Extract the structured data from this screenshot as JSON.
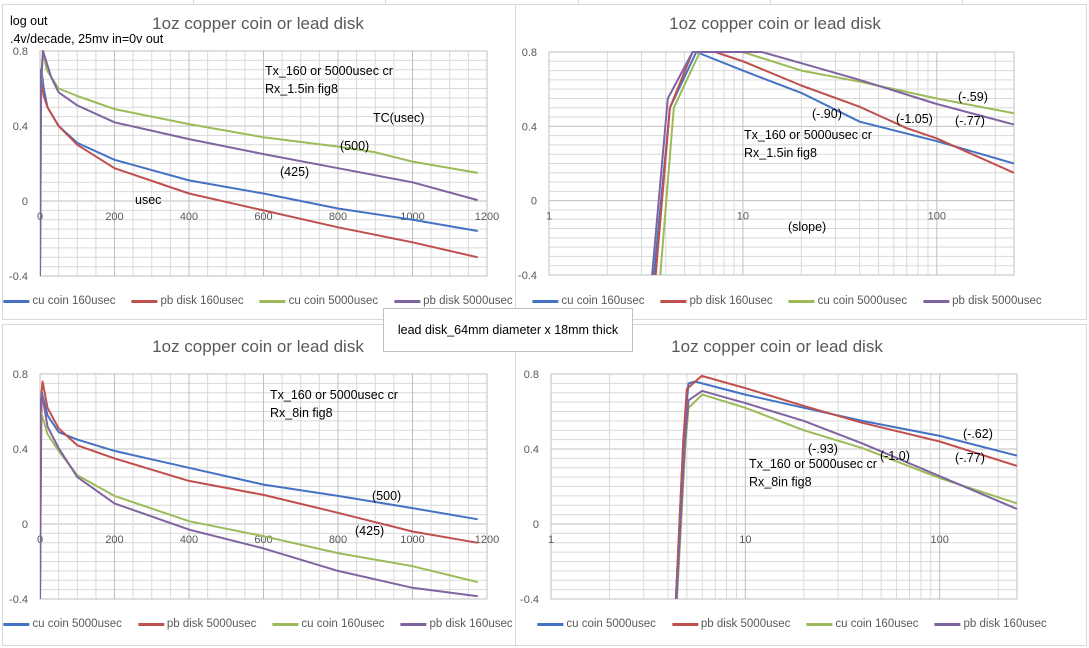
{
  "colors": {
    "blue": "#4472c4",
    "red": "#c0504d",
    "green": "#9bbb59",
    "purple": "#8064a2",
    "grid": "#d9d9d9",
    "axis_text": "#595959"
  },
  "textbox": "lead disk_64mm diameter x 18mm thick",
  "chart_data": [
    {
      "type": "line",
      "title": "1oz copper coin or lead disk",
      "annotations": [
        "log out",
        ".4v/decade, 25mv in=0v out",
        "Tx_160 or 5000usec cr",
        "Rx_1.5in fig8",
        "TC(usec)",
        "(500)",
        "(425)",
        "usec"
      ],
      "xscale": "linear",
      "xlim": [
        0,
        1200
      ],
      "ylim": [
        -0.4,
        0.8
      ],
      "xticks": [
        "0",
        "200",
        "400",
        "600",
        "800",
        "1000",
        "1200"
      ],
      "yticks": [
        "-0.4",
        "0",
        "0.4",
        "0.8"
      ],
      "grid": true,
      "legend": "bottom",
      "series": [
        {
          "name": "cu coin 160usec",
          "color": "#4472c4",
          "x": [
            0,
            2,
            5,
            10,
            20,
            50,
            100,
            200,
            400,
            600,
            800,
            1000,
            1175
          ],
          "y": [
            -0.4,
            0.7,
            0.68,
            0.6,
            0.5,
            0.4,
            0.31,
            0.22,
            0.11,
            0.04,
            -0.04,
            -0.1,
            -0.16
          ]
        },
        {
          "name": "pb disk 160usec",
          "color": "#c0504d",
          "x": [
            0,
            2,
            5,
            10,
            20,
            50,
            100,
            200,
            400,
            600,
            800,
            1000,
            1175
          ],
          "y": [
            -0.4,
            0.6,
            0.62,
            0.56,
            0.5,
            0.4,
            0.3,
            0.175,
            0.04,
            -0.05,
            -0.14,
            -0.22,
            -0.3
          ]
        },
        {
          "name": "cu coin 5000usec",
          "color": "#9bbb59",
          "x": [
            0,
            3,
            8,
            18,
            50,
            100,
            200,
            400,
            600,
            800,
            900,
            1000,
            1175
          ],
          "y": [
            -0.4,
            0.6,
            0.8,
            0.7,
            0.6,
            0.56,
            0.49,
            0.41,
            0.34,
            0.29,
            0.26,
            0.21,
            0.15
          ]
        },
        {
          "name": "pb disk 5000usec",
          "color": "#8064a2",
          "x": [
            0,
            3,
            8,
            30,
            50,
            100,
            200,
            400,
            600,
            800,
            1000,
            1175
          ],
          "y": [
            -0.4,
            0.65,
            0.8,
            0.66,
            0.58,
            0.51,
            0.42,
            0.33,
            0.25,
            0.175,
            0.1,
            0.005
          ]
        }
      ]
    },
    {
      "type": "line",
      "title": "1oz copper coin or lead disk",
      "annotations": [
        "(-.90)",
        "(-1.05)",
        "(-.59)",
        "(-.77)",
        "Tx_160 or 5000usec cr",
        "Rx_1.5in fig8",
        "(slope)"
      ],
      "xscale": "log",
      "xlim": [
        1,
        250
      ],
      "ylim": [
        -0.4,
        0.8
      ],
      "xticks": [
        "1",
        "10",
        "100"
      ],
      "yticks": [
        "-0.4",
        "0",
        "0.4",
        "0.8"
      ],
      "grid": true,
      "legend": "bottom",
      "series": [
        {
          "name": "cu coin 160usec",
          "color": "#4472c4",
          "x": [
            3.48,
            4.2,
            5.75,
            10,
            20,
            40,
            100,
            250
          ],
          "y": [
            -0.4,
            0.5,
            0.8,
            0.7,
            0.58,
            0.425,
            0.32,
            0.2
          ]
        },
        {
          "name": "pb disk 160usec",
          "color": "#c0504d",
          "x": [
            3.55,
            4.2,
            5.5,
            7.2,
            10,
            20,
            40,
            70,
            100,
            250
          ],
          "y": [
            -0.4,
            0.5,
            0.8,
            0.8,
            0.75,
            0.62,
            0.505,
            0.39,
            0.335,
            0.15
          ]
        },
        {
          "name": "cu coin 5000usec",
          "color": "#9bbb59",
          "x": [
            3.75,
            4.4,
            6,
            10,
            20,
            40,
            100,
            250
          ],
          "y": [
            -0.4,
            0.5,
            0.8,
            0.8,
            0.7,
            0.64,
            0.55,
            0.47
          ]
        },
        {
          "name": "pb disk 5000usec",
          "color": "#8064a2",
          "x": [
            3.4,
            4.1,
            5.5,
            12.5,
            20,
            40,
            100,
            250
          ],
          "y": [
            -0.4,
            0.55,
            0.8,
            0.8,
            0.74,
            0.65,
            0.52,
            0.41
          ]
        }
      ]
    },
    {
      "type": "line",
      "title": "1oz copper coin or lead disk",
      "annotations": [
        "Tx_160 or 5000usec cr",
        "Rx_8in fig8",
        "(500)",
        "(425)"
      ],
      "xscale": "linear",
      "xlim": [
        0,
        1200
      ],
      "ylim": [
        -0.4,
        0.8
      ],
      "xticks": [
        "0",
        "200",
        "400",
        "600",
        "800",
        "1000",
        "1200"
      ],
      "yticks": [
        "-0.4",
        "0",
        "0.4",
        "0.8"
      ],
      "grid": true,
      "legend": "bottom",
      "series": [
        {
          "name": "cu coin 5000usec",
          "color": "#4472c4",
          "x": [
            0,
            3,
            5,
            20,
            50,
            100,
            200,
            400,
            600,
            800,
            1000,
            1175
          ],
          "y": [
            -0.4,
            0.6,
            0.7,
            0.58,
            0.49,
            0.45,
            0.39,
            0.3,
            0.21,
            0.15,
            0.085,
            0.025
          ]
        },
        {
          "name": "pb disk 5000usec",
          "color": "#c0504d",
          "x": [
            0,
            4,
            7,
            20,
            50,
            100,
            200,
            400,
            600,
            800,
            1000,
            1175
          ],
          "y": [
            -0.4,
            0.7,
            0.76,
            0.62,
            0.51,
            0.42,
            0.35,
            0.23,
            0.155,
            0.06,
            -0.04,
            -0.1
          ]
        },
        {
          "name": "cu coin 160usec",
          "color": "#9bbb59",
          "x": [
            0,
            2,
            10,
            20,
            50,
            100,
            200,
            400,
            600,
            800,
            1000,
            1175
          ],
          "y": [
            -0.4,
            0.6,
            0.55,
            0.48,
            0.39,
            0.26,
            0.15,
            0.015,
            -0.065,
            -0.155,
            -0.225,
            -0.31
          ]
        },
        {
          "name": "pb disk  160usec",
          "color": "#8064a2",
          "x": [
            0,
            2,
            5,
            20,
            50,
            100,
            200,
            400,
            600,
            800,
            1000,
            1175
          ],
          "y": [
            -0.4,
            0.65,
            0.7,
            0.52,
            0.405,
            0.25,
            0.11,
            -0.03,
            -0.13,
            -0.25,
            -0.34,
            -0.385
          ]
        }
      ]
    },
    {
      "type": "line",
      "title": "1oz copper coin or lead disk",
      "annotations": [
        "(-.62)",
        "(-.77)",
        "(-.93)",
        "(-1.0)",
        "Tx_160 or 5000usec cr",
        "Rx_8in fig8"
      ],
      "xscale": "log",
      "xlim": [
        1,
        250
      ],
      "ylim": [
        -0.4,
        0.8
      ],
      "xticks": [
        "1",
        "10",
        "100"
      ],
      "yticks": [
        "-0.4",
        "0",
        "0.4",
        "0.8"
      ],
      "grid": true,
      "legend": "bottom",
      "series": [
        {
          "name": "cu coin 5000usec",
          "color": "#4472c4",
          "x": [
            4.39,
            4.8,
            5.1,
            5.5,
            10,
            20,
            40,
            100,
            250
          ],
          "y": [
            -0.4,
            0.45,
            0.75,
            0.76,
            0.69,
            0.62,
            0.55,
            0.47,
            0.365
          ]
        },
        {
          "name": "pb disk 5000usec",
          "color": "#c0504d",
          "x": [
            4.39,
            4.8,
            5.0,
            5.96,
            10,
            20,
            40,
            100,
            250
          ],
          "y": [
            -0.4,
            0.45,
            0.72,
            0.79,
            0.725,
            0.63,
            0.54,
            0.44,
            0.31
          ]
        },
        {
          "name": "cu coin 160usec",
          "color": "#9bbb59",
          "x": [
            4.45,
            4.9,
            5.1,
            6,
            10,
            20,
            40,
            100,
            250
          ],
          "y": [
            -0.4,
            0.4,
            0.62,
            0.69,
            0.62,
            0.5,
            0.405,
            0.245,
            0.11
          ]
        },
        {
          "name": "pb disk 160usec",
          "color": "#8064a2",
          "x": [
            4.42,
            4.9,
            5.1,
            6,
            10,
            20,
            40,
            100,
            250
          ],
          "y": [
            -0.4,
            0.45,
            0.66,
            0.71,
            0.645,
            0.55,
            0.43,
            0.255,
            0.08
          ]
        }
      ]
    }
  ]
}
